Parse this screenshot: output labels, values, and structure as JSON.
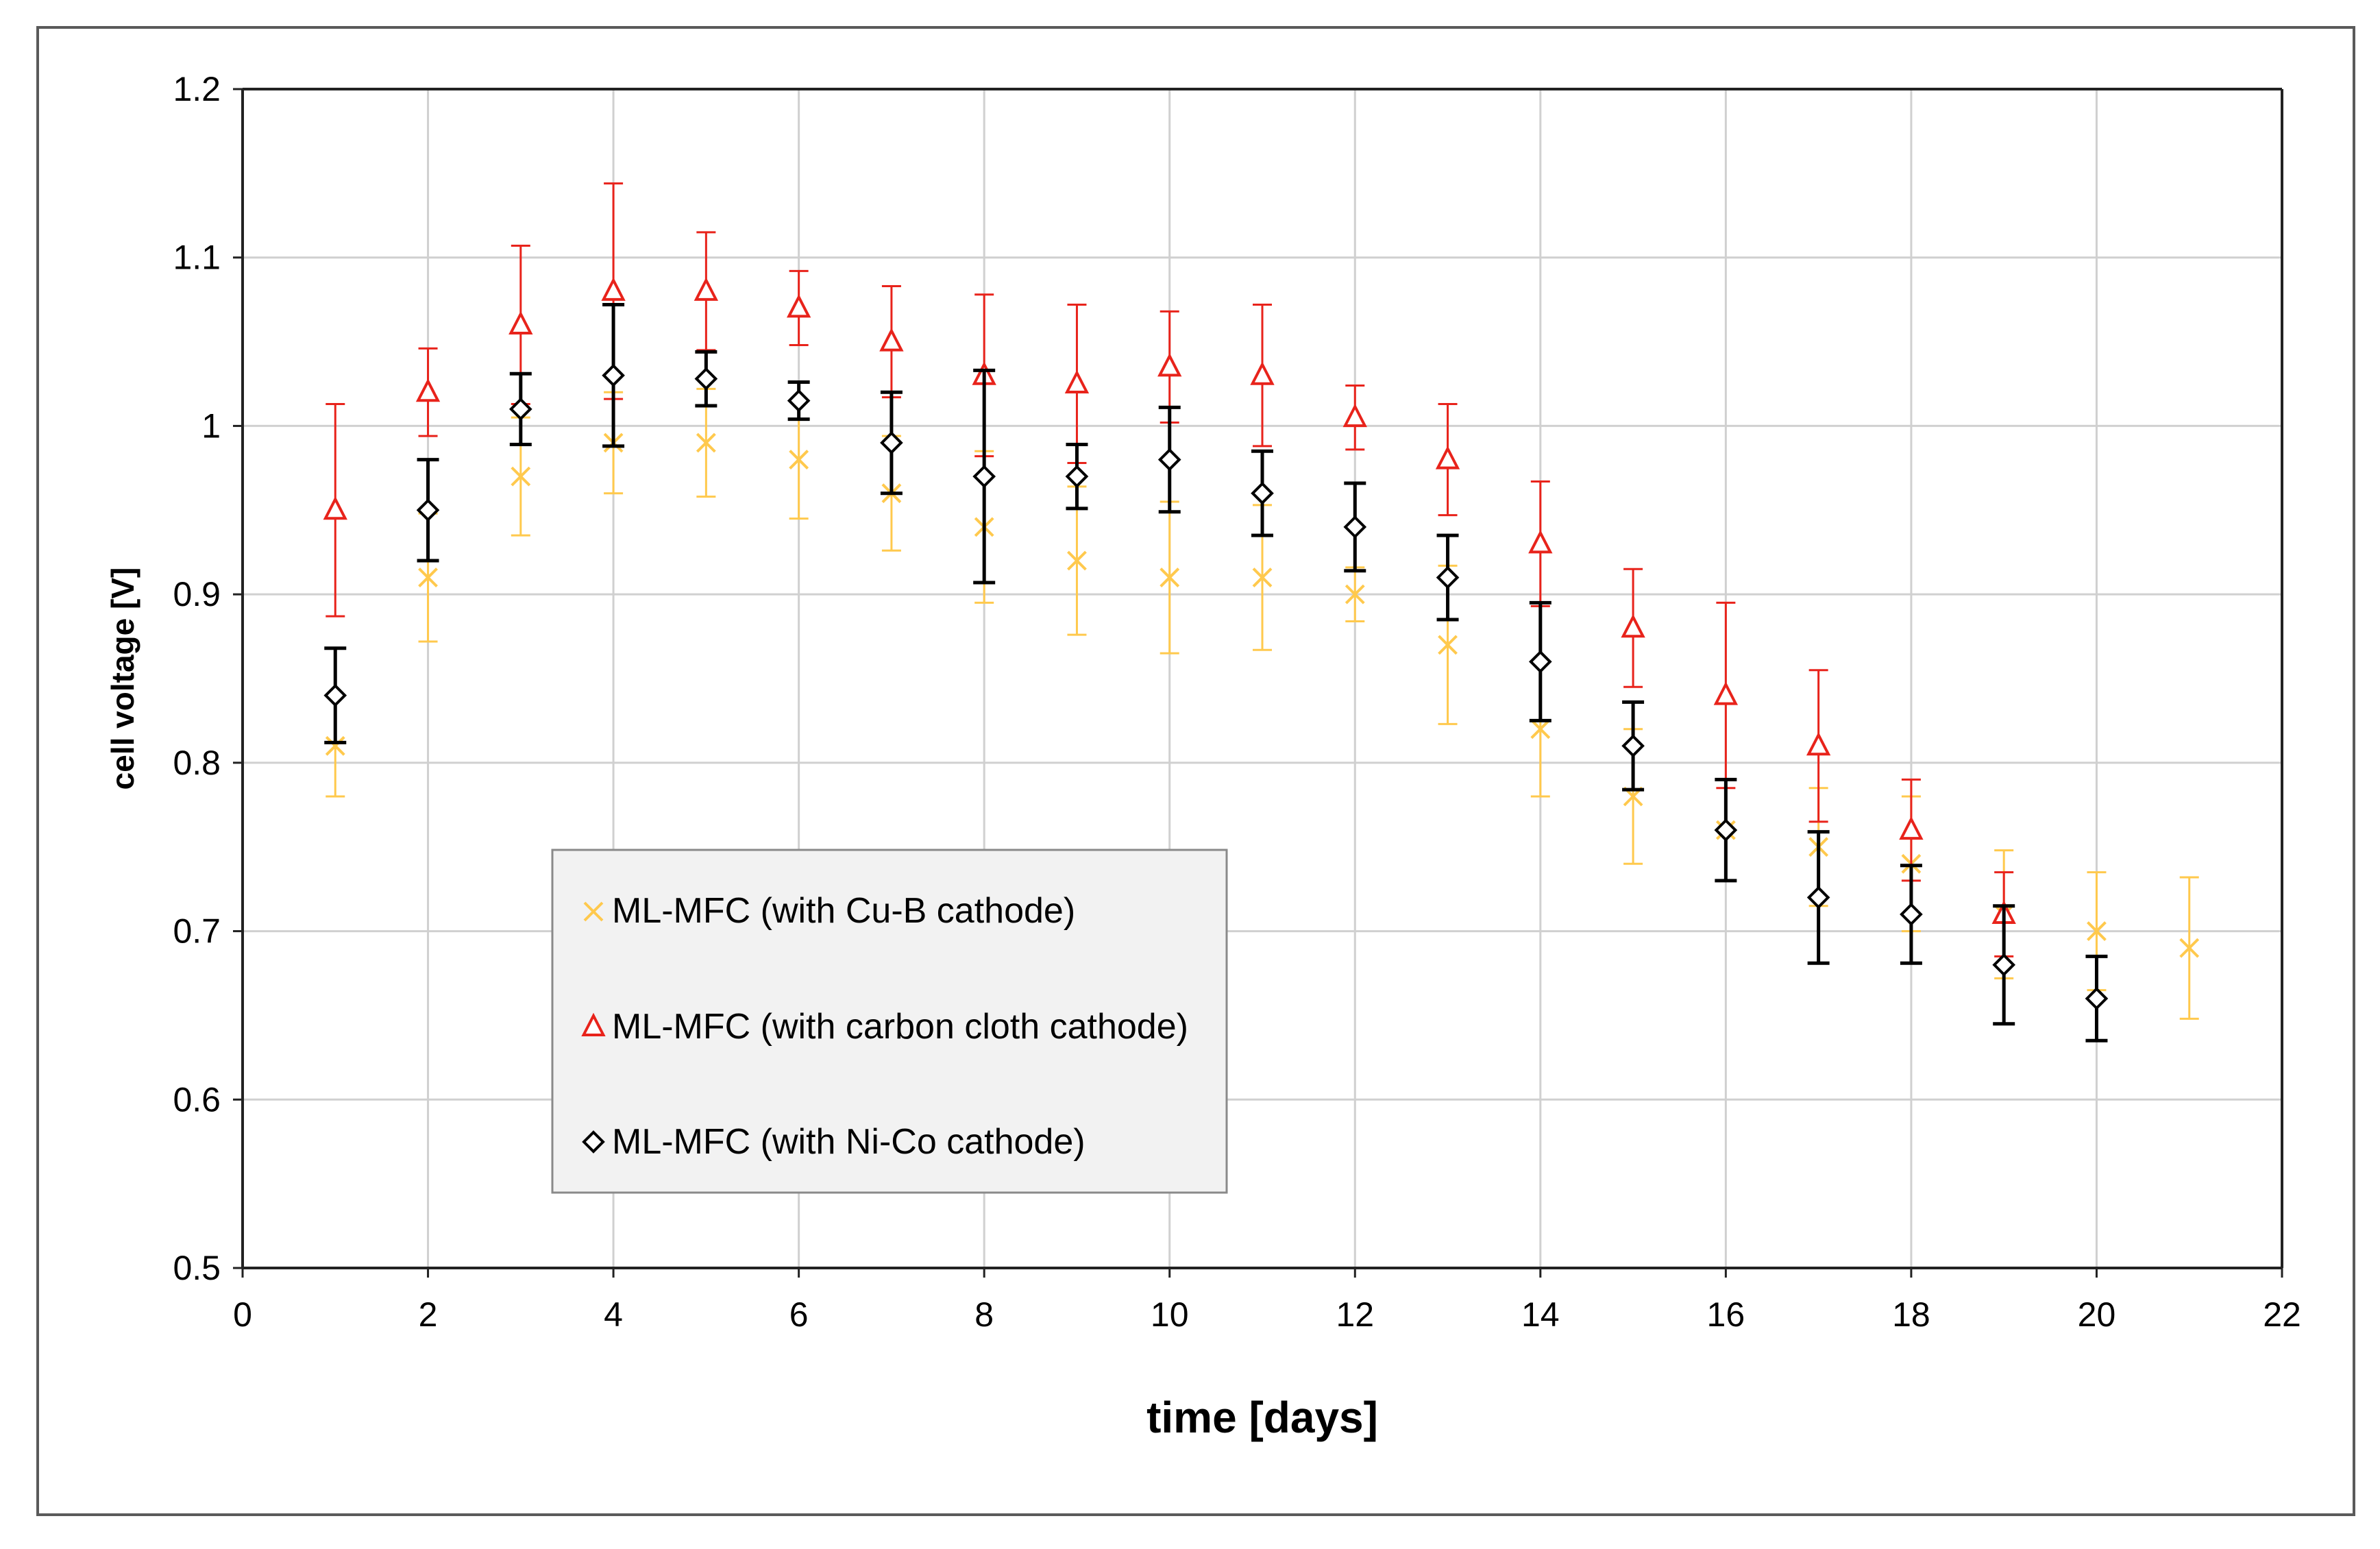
{
  "chart_data": {
    "type": "scatter",
    "title": "",
    "xlabel": "time [days]",
    "ylabel": "cell voltage [V]",
    "xlim": [
      0,
      22
    ],
    "ylim": [
      0.5,
      1.2
    ],
    "xticks": [
      0,
      2,
      4,
      6,
      8,
      10,
      12,
      14,
      16,
      18,
      20,
      22
    ],
    "yticks": [
      0.5,
      0.6,
      0.7,
      0.8,
      0.9,
      1.0,
      1.1,
      1.2
    ],
    "ytick_labels": [
      "0.5",
      "0.6",
      "0.7",
      "0.8",
      "0.9",
      "1",
      "1.1",
      "1.2"
    ],
    "grid": true,
    "legend_position": "lower-left inside plot",
    "series": [
      {
        "name": "ML-MFC (with Cu-B cathode)",
        "marker": "x",
        "color": "#FFC94D",
        "x": [
          1,
          2,
          3,
          4,
          5,
          6,
          7,
          8,
          9,
          10,
          11,
          12,
          13,
          14,
          15,
          16,
          17,
          18,
          19,
          20,
          21
        ],
        "y": [
          0.81,
          0.91,
          0.97,
          0.99,
          0.99,
          0.98,
          0.96,
          0.94,
          0.92,
          0.91,
          0.91,
          0.9,
          0.87,
          0.82,
          0.78,
          0.76,
          0.75,
          0.74,
          0.71,
          0.7,
          0.69
        ],
        "err": [
          0.03,
          0.038,
          0.035,
          0.03,
          0.032,
          0.035,
          0.034,
          0.045,
          0.044,
          0.045,
          0.043,
          0.016,
          0.047,
          0.04,
          0.04,
          0.03,
          0.035,
          0.04,
          0.038,
          0.035,
          0.042
        ]
      },
      {
        "name": "ML-MFC (with carbon cloth cathode)",
        "marker": "triangle",
        "color": "#E8231B",
        "x": [
          1,
          2,
          3,
          4,
          5,
          6,
          7,
          8,
          9,
          10,
          11,
          12,
          13,
          14,
          15,
          16,
          17,
          18,
          19
        ],
        "y": [
          0.95,
          1.02,
          1.06,
          1.08,
          1.08,
          1.07,
          1.05,
          1.03,
          1.025,
          1.035,
          1.03,
          1.005,
          0.98,
          0.93,
          0.88,
          0.84,
          0.81,
          0.76,
          0.71
        ],
        "err": [
          0.063,
          0.026,
          0.047,
          0.064,
          0.035,
          0.022,
          0.033,
          0.048,
          0.047,
          0.033,
          0.042,
          0.019,
          0.033,
          0.037,
          0.035,
          0.055,
          0.045,
          0.03,
          0.025
        ]
      },
      {
        "name": "ML-MFC (with Ni-Co cathode)",
        "marker": "diamond",
        "color": "#000000",
        "x": [
          1,
          2,
          3,
          4,
          5,
          6,
          7,
          8,
          9,
          10,
          11,
          12,
          13,
          14,
          15,
          16,
          17,
          18,
          19,
          20
        ],
        "y": [
          0.84,
          0.95,
          1.01,
          1.03,
          1.028,
          1.015,
          0.99,
          0.97,
          0.97,
          0.98,
          0.96,
          0.94,
          0.91,
          0.86,
          0.81,
          0.76,
          0.72,
          0.71,
          0.68,
          0.66
        ],
        "err": [
          0.028,
          0.03,
          0.021,
          0.042,
          0.016,
          0.011,
          0.03,
          0.063,
          0.019,
          0.031,
          0.025,
          0.026,
          0.025,
          0.035,
          0.026,
          0.03,
          0.039,
          0.029,
          0.035,
          0.025
        ]
      }
    ]
  }
}
